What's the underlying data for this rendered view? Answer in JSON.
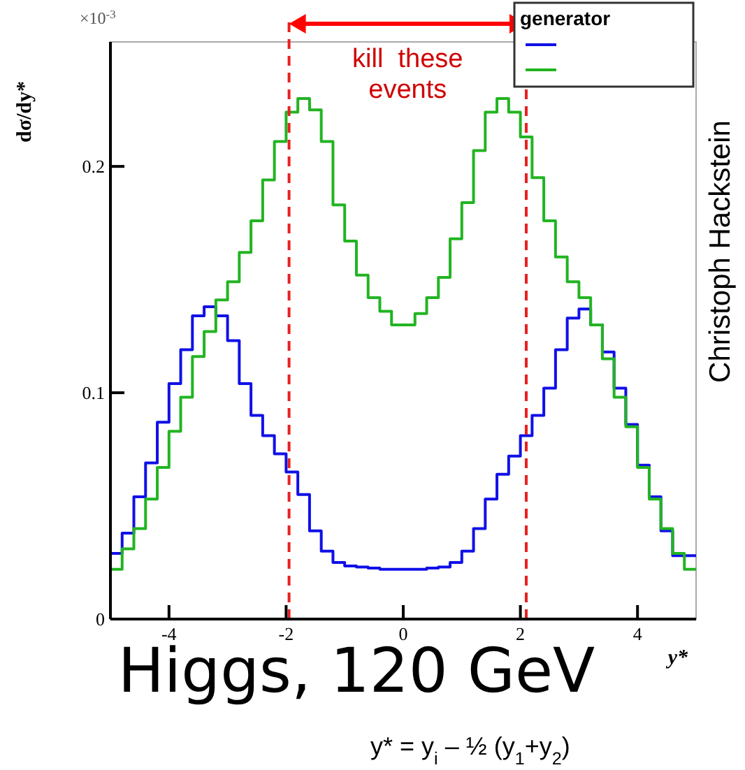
{
  "chart_data": {
    "type": "histogram",
    "ylabel": "dσ/dy*",
    "xlabel": "y*",
    "legend_title": "generator",
    "bins": [
      -5,
      -4.8,
      -4.6,
      -4.4,
      -4.2,
      -4,
      -3.8,
      -3.6,
      -3.4,
      -3.2,
      -3,
      -2.8,
      -2.6,
      -2.4,
      -2.2,
      -2,
      -1.8,
      -1.6,
      -1.4,
      -1.2,
      -1,
      -0.8,
      -0.6,
      -0.4,
      -0.2,
      0,
      0.2,
      0.4,
      0.6,
      0.8,
      1,
      1.2,
      1.4,
      1.6,
      1.8,
      2,
      2.2,
      2.4,
      2.6,
      2.8,
      3,
      3.2,
      3.4,
      3.6,
      3.8,
      4,
      4.2,
      4.4,
      4.6,
      4.8,
      5
    ],
    "series": [
      {
        "color": "#1010e8",
        "values": [
          0.029,
          0.038,
          0.054,
          0.069,
          0.087,
          0.104,
          0.119,
          0.134,
          0.138,
          0.134,
          0.123,
          0.104,
          0.09,
          0.081,
          0.073,
          0.065,
          0.055,
          0.039,
          0.03,
          0.025,
          0.0235,
          0.023,
          0.0225,
          0.022,
          0.022,
          0.022,
          0.022,
          0.0225,
          0.023,
          0.025,
          0.03,
          0.04,
          0.053,
          0.064,
          0.072,
          0.081,
          0.09,
          0.102,
          0.119,
          0.133,
          0.137,
          0.13,
          0.118,
          0.102,
          0.086,
          0.068,
          0.054,
          0.039,
          0.028,
          0.028
        ]
      },
      {
        "color": "#22b422",
        "values": [
          0.022,
          0.031,
          0.04,
          0.053,
          0.067,
          0.083,
          0.098,
          0.116,
          0.127,
          0.141,
          0.149,
          0.162,
          0.176,
          0.194,
          0.211,
          0.224,
          0.23,
          0.225,
          0.211,
          0.183,
          0.167,
          0.152,
          0.142,
          0.136,
          0.13,
          0.13,
          0.135,
          0.142,
          0.151,
          0.168,
          0.184,
          0.207,
          0.224,
          0.23,
          0.224,
          0.213,
          0.195,
          0.176,
          0.16,
          0.149,
          0.142,
          0.13,
          0.115,
          0.098,
          0.085,
          0.067,
          0.053,
          0.04,
          0.029,
          0.022
        ]
      }
    ],
    "xlim": [
      -5,
      5
    ],
    "xticks": [
      -4,
      -2,
      0,
      2,
      4
    ],
    "ylim": [
      0,
      0.255
    ],
    "yticks": [
      0,
      0.1,
      0.2
    ],
    "ref_lines": [
      {
        "axis": "x",
        "value": -1.95,
        "color": "#e82020",
        "line_style": "dashed"
      },
      {
        "axis": "x",
        "value": 2.1,
        "color": "#e82020",
        "line_style": "dashed"
      }
    ],
    "annotations": [
      "×10$^{-3}$",
      "kill  these events",
      "Higgs, 120 GeV",
      "Christoph Hackstein",
      "y* = y$_{i}$ – ½ (y$_{1}$+y$_{2}$)"
    ]
  }
}
